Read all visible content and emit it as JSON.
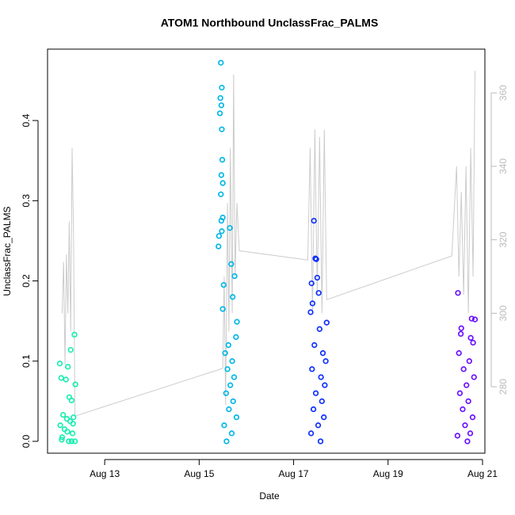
{
  "chart_data": {
    "type": "scatter",
    "title": "ATOM1 Northbound UnclassFrac_PALMS",
    "x_label": "Date",
    "y_label": "UnclassFrac_PALMS",
    "xlim": [
      11.79,
      21.05
    ],
    "xticks": [
      {
        "value": 13,
        "label": "Aug 13"
      },
      {
        "value": 15,
        "label": "Aug 15"
      },
      {
        "value": 17,
        "label": "Aug 17"
      },
      {
        "value": 19,
        "label": "Aug 19"
      },
      {
        "value": 21,
        "label": "Aug 21"
      }
    ],
    "ylim": [
      -0.0148,
      0.489
    ],
    "yticks": [
      {
        "value": 0,
        "label": "0.0"
      },
      0.1,
      0.2,
      0.3,
      0.4
    ],
    "y2lim": [
      261.9,
      371.9
    ],
    "y2ticks": [
      280,
      300,
      320,
      340,
      360
    ],
    "series": [
      {
        "color": "#1aefb0",
        "x": [
          12.36,
          12.28,
          12.05,
          12.22,
          12.08,
          12.18,
          12.38,
          12.25,
          12.3,
          12.12,
          12.34,
          12.2,
          12.27,
          12.06,
          12.15,
          12.32,
          12.1,
          12.24,
          12.37,
          12.3,
          12.09,
          12.21,
          12.33
        ],
        "values": [
          0.133,
          0.114,
          0.097,
          0.093,
          0.079,
          0.077,
          0.071,
          0.055,
          0.051,
          0.033,
          0.03,
          0.028,
          0.025,
          0.02,
          0.015,
          0.01,
          0.005,
          0,
          0,
          0,
          0.002,
          0.012,
          0.022
        ]
      },
      {
        "color": "#00b7e6",
        "x": [
          15.46,
          15.48,
          15.45,
          15.47,
          15.44,
          15.48,
          15.49,
          15.47,
          15.5,
          15.46,
          15.5,
          15.47,
          15.65,
          15.48,
          15.42,
          15.41,
          15.68,
          15.75,
          15.52,
          15.71,
          15.5,
          15.8,
          15.78,
          15.62,
          15.55,
          15.7,
          15.6,
          15.74,
          15.66,
          15.57,
          15.72,
          15.63,
          15.79,
          15.53,
          15.69,
          15.58
        ],
        "values": [
          0.472,
          0.441,
          0.428,
          0.419,
          0.409,
          0.389,
          0.351,
          0.332,
          0.322,
          0.308,
          0.279,
          0.275,
          0.266,
          0.262,
          0.256,
          0.243,
          0.221,
          0.206,
          0.195,
          0.18,
          0.165,
          0.149,
          0.13,
          0.12,
          0.11,
          0.1,
          0.09,
          0.08,
          0.07,
          0.06,
          0.05,
          0.04,
          0.03,
          0.02,
          0.01,
          0
        ]
      },
      {
        "color": "#0f2fff",
        "x": [
          17.43,
          17.46,
          17.48,
          17.5,
          17.38,
          17.53,
          17.4,
          17.36,
          17.7,
          17.55,
          17.44,
          17.62,
          17.68,
          17.39,
          17.58,
          17.66,
          17.47,
          17.6,
          17.42,
          17.64,
          17.52,
          17.37,
          17.57
        ],
        "values": [
          0.275,
          0.228,
          0.227,
          0.204,
          0.197,
          0.185,
          0.172,
          0.161,
          0.148,
          0.14,
          0.12,
          0.11,
          0.1,
          0.09,
          0.08,
          0.07,
          0.06,
          0.05,
          0.04,
          0.03,
          0.02,
          0.01,
          0
        ]
      },
      {
        "color": "#6a12ff",
        "x": [
          20.48,
          20.55,
          20.54,
          20.75,
          20.8,
          20.77,
          20.84,
          20.5,
          20.72,
          20.6,
          20.82,
          20.66,
          20.52,
          20.7,
          20.58,
          20.79,
          20.63,
          20.74,
          20.47,
          20.68
        ],
        "values": [
          0.185,
          0.141,
          0.134,
          0.129,
          0.123,
          0.153,
          0.152,
          0.11,
          0.1,
          0.09,
          0.08,
          0.07,
          0.06,
          0.05,
          0.04,
          0.03,
          0.02,
          0.01,
          0.007,
          0
        ]
      },
      {
        "color": "#cccccc",
        "type": "line",
        "axis": "y2",
        "x": [
          12.1,
          12.13,
          12.16,
          12.19,
          12.22,
          12.25,
          12.28,
          12.31,
          12.34,
          12.37,
          15.5,
          15.53,
          15.56,
          15.6,
          15.63,
          15.66,
          15.7,
          15.73,
          15.76,
          15.8,
          15.85,
          17.3,
          17.35,
          17.4,
          17.45,
          17.5,
          17.55,
          17.6,
          17.65,
          17.7,
          20.35,
          20.45,
          20.5,
          20.55,
          20.6,
          20.65,
          20.7,
          20.75,
          20.8,
          20.84
        ],
        "values": [
          300,
          314,
          286,
          316,
          300,
          325,
          295,
          345,
          322,
          272,
          285,
          310,
          275,
          330,
          295,
          345,
          300,
          365,
          310,
          330,
          317,
          314.5,
          345,
          300,
          350,
          305,
          348,
          300,
          350,
          303.7,
          315.6,
          340,
          310,
          333,
          305,
          340,
          300,
          345,
          310,
          366
        ]
      }
    ]
  }
}
